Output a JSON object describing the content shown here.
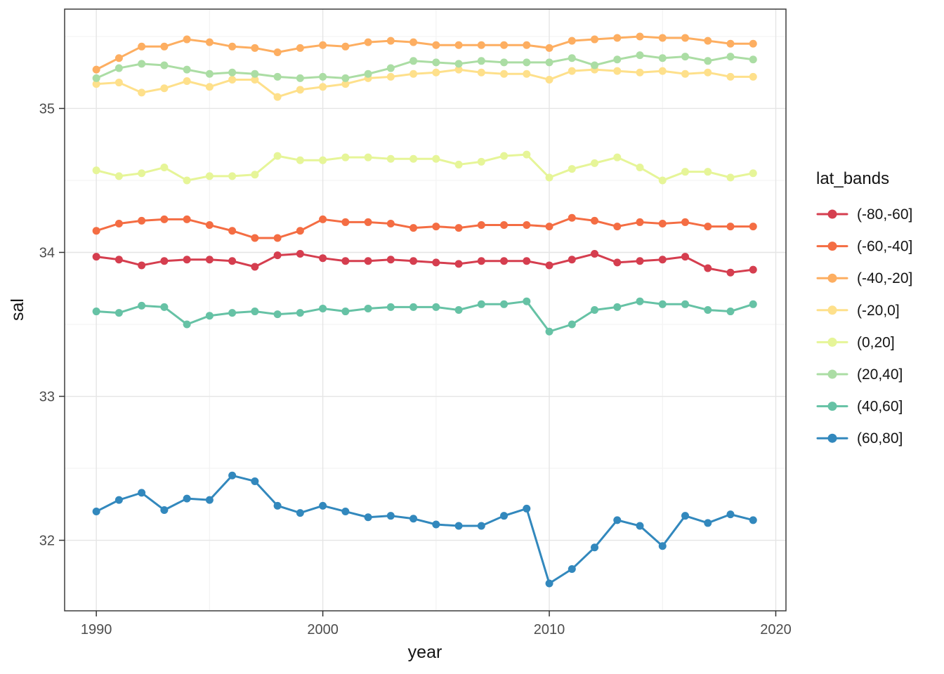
{
  "chart_data": {
    "type": "line",
    "title": "",
    "xlabel": "year",
    "ylabel": "sal",
    "legend_title": "lat_bands",
    "legend_position": "right",
    "grid": true,
    "xlim": [
      1988.6,
      2020.45
    ],
    "ylim": [
      31.51,
      35.69
    ],
    "x_ticks": [
      1990,
      2000,
      2010,
      2020
    ],
    "y_ticks": [
      35,
      34,
      33,
      32
    ],
    "x_minor": [
      1995,
      2005,
      2015
    ],
    "y_minor": [
      35.5,
      34.5,
      33.5,
      32.5
    ],
    "x": [
      1990,
      1991,
      1992,
      1993,
      1994,
      1995,
      1996,
      1997,
      1998,
      1999,
      2000,
      2001,
      2002,
      2003,
      2004,
      2005,
      2006,
      2007,
      2008,
      2009,
      2010,
      2011,
      2012,
      2013,
      2014,
      2015,
      2016,
      2017,
      2018,
      2019
    ],
    "series": [
      {
        "name": "(-80,-60]",
        "color": "#d53e4f",
        "values": [
          33.97,
          33.95,
          33.91,
          33.94,
          33.95,
          33.95,
          33.94,
          33.9,
          33.98,
          33.99,
          33.96,
          33.94,
          33.94,
          33.95,
          33.94,
          33.93,
          33.92,
          33.94,
          33.94,
          33.94,
          33.91,
          33.95,
          33.99,
          33.93,
          33.94,
          33.95,
          33.97,
          33.89,
          33.86,
          33.88
        ]
      },
      {
        "name": "(-60,-40]",
        "color": "#f46d43",
        "values": [
          34.15,
          34.2,
          34.22,
          34.23,
          34.23,
          34.19,
          34.15,
          34.1,
          34.1,
          34.15,
          34.23,
          34.21,
          34.21,
          34.2,
          34.17,
          34.18,
          34.17,
          34.19,
          34.19,
          34.19,
          34.18,
          34.24,
          34.22,
          34.18,
          34.21,
          34.2,
          34.21,
          34.18,
          34.18,
          34.18
        ]
      },
      {
        "name": "(-40,-20]",
        "color": "#fdae61",
        "values": [
          35.27,
          35.35,
          35.43,
          35.43,
          35.48,
          35.46,
          35.43,
          35.42,
          35.39,
          35.42,
          35.44,
          35.43,
          35.46,
          35.47,
          35.46,
          35.44,
          35.44,
          35.44,
          35.44,
          35.44,
          35.42,
          35.47,
          35.48,
          35.49,
          35.5,
          35.49,
          35.49,
          35.47,
          35.45,
          35.45
        ]
      },
      {
        "name": "(-20,0]",
        "color": "#fee08b",
        "values": [
          35.17,
          35.18,
          35.11,
          35.14,
          35.19,
          35.15,
          35.2,
          35.2,
          35.08,
          35.13,
          35.15,
          35.17,
          35.21,
          35.22,
          35.24,
          35.25,
          35.27,
          35.25,
          35.24,
          35.24,
          35.2,
          35.26,
          35.27,
          35.26,
          35.25,
          35.26,
          35.24,
          35.25,
          35.22,
          35.22
        ]
      },
      {
        "name": "(0,20]",
        "color": "#e6f598",
        "values": [
          34.57,
          34.53,
          34.55,
          34.59,
          34.5,
          34.53,
          34.53,
          34.54,
          34.67,
          34.64,
          34.64,
          34.66,
          34.66,
          34.65,
          34.65,
          34.65,
          34.61,
          34.63,
          34.67,
          34.68,
          34.52,
          34.58,
          34.62,
          34.66,
          34.59,
          34.5,
          34.56,
          34.56,
          34.52,
          34.55
        ]
      },
      {
        "name": "(20,40]",
        "color": "#abdda4",
        "values": [
          35.21,
          35.28,
          35.31,
          35.3,
          35.27,
          35.24,
          35.25,
          35.24,
          35.22,
          35.21,
          35.22,
          35.21,
          35.24,
          35.28,
          35.33,
          35.32,
          35.31,
          35.33,
          35.32,
          35.32,
          35.32,
          35.35,
          35.3,
          35.34,
          35.37,
          35.35,
          35.36,
          35.33,
          35.36,
          35.34
        ]
      },
      {
        "name": "(40,60]",
        "color": "#66c2a5",
        "values": [
          33.59,
          33.58,
          33.63,
          33.62,
          33.5,
          33.56,
          33.58,
          33.59,
          33.57,
          33.58,
          33.61,
          33.59,
          33.61,
          33.62,
          33.62,
          33.62,
          33.6,
          33.64,
          33.64,
          33.66,
          33.45,
          33.5,
          33.6,
          33.62,
          33.66,
          33.64,
          33.64,
          33.6,
          33.59,
          33.64
        ]
      },
      {
        "name": "(60,80]",
        "color": "#3288bd",
        "values": [
          32.2,
          32.28,
          32.33,
          32.21,
          32.29,
          32.28,
          32.45,
          32.41,
          32.24,
          32.19,
          32.24,
          32.2,
          32.16,
          32.17,
          32.15,
          32.11,
          32.1,
          32.1,
          32.17,
          32.22,
          31.7,
          31.8,
          31.95,
          32.14,
          32.1,
          31.96,
          32.17,
          32.12,
          32.18,
          32.14
        ]
      }
    ]
  },
  "theme": {
    "background": "#ffffff",
    "panel_fill": "#ffffff",
    "grid_major": "#e5e5e5",
    "grid_minor": "#f3f3f3",
    "panel_border": "#3d3d3d",
    "tick_color": "#333333",
    "axis_text": "#4d4d4d",
    "axis_title": "#141414",
    "legend_text": "#141414"
  }
}
